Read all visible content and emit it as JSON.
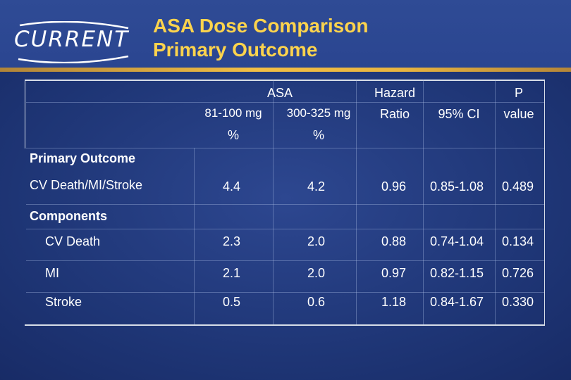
{
  "header": {
    "logo_text": "CURRENT",
    "title_line1": "ASA Dose Comparison",
    "title_line2": "Primary Outcome"
  },
  "table": {
    "group_header": "ASA",
    "hazard_header_line1": "Hazard",
    "hazard_header_line2": "Ratio",
    "ci_header": "95% CI",
    "p_header_line1": "P",
    "p_header_line2": "value",
    "dose_low": "81-100 mg",
    "dose_high": "300-325 mg",
    "unit_low": "%",
    "unit_high": "%",
    "section_primary": "Primary Outcome",
    "section_components": "Components",
    "rows": [
      {
        "label": "CV Death/MI/Stroke",
        "low": "4.4",
        "high": "4.2",
        "hr": "0.96",
        "ci": "0.85-1.08",
        "p": "0.489"
      },
      {
        "label": "CV Death",
        "low": "2.3",
        "high": "2.0",
        "hr": "0.88",
        "ci": "0.74-1.04",
        "p": "0.134"
      },
      {
        "label": "MI",
        "low": "2.1",
        "high": "2.0",
        "hr": "0.97",
        "ci": "0.82-1.15",
        "p": "0.726"
      },
      {
        "label": "Stroke",
        "low": "0.5",
        "high": "0.6",
        "hr": "1.18",
        "ci": "0.84-1.67",
        "p": "0.330"
      }
    ]
  }
}
